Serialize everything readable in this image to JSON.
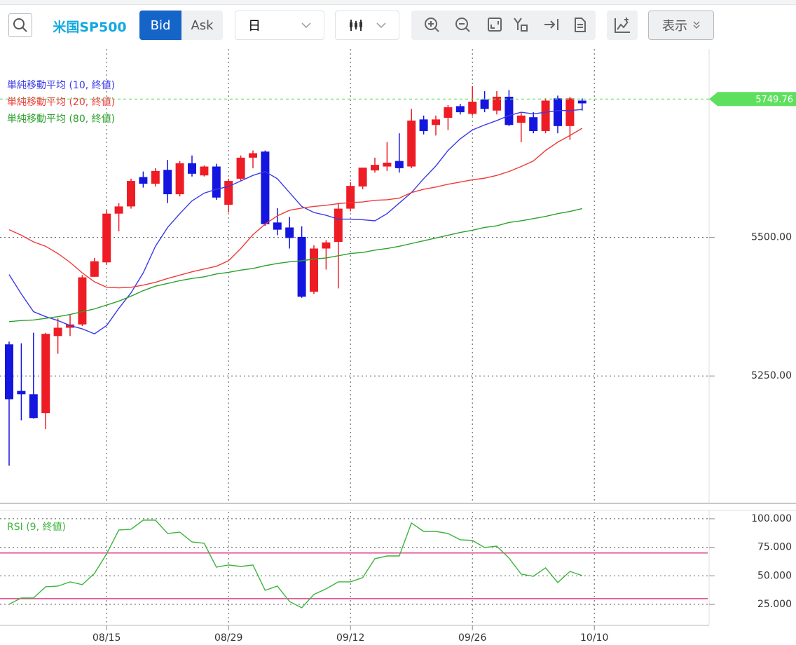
{
  "toolbar": {
    "symbol": "米国SP500",
    "bid": "Bid",
    "ask": "Ask",
    "period": "日",
    "display": "表示"
  },
  "chart_data": [
    {
      "type": "candlestick",
      "up_color": "#ee1c25",
      "down_color": "#1515e0",
      "open": [
        5307,
        5223,
        5217,
        5183,
        5322,
        5337,
        5343,
        5429,
        5455,
        5543,
        5556,
        5609,
        5597,
        5622,
        5578,
        5634,
        5612,
        5628,
        5559,
        5606,
        5644,
        5655,
        5527,
        5518,
        5501,
        5402,
        5480,
        5492,
        5552,
        5592,
        5621,
        5628,
        5638,
        5628,
        5713,
        5703,
        5716,
        5737,
        5723,
        5749,
        5729,
        5754,
        5707,
        5717,
        5692,
        5751,
        5701,
        5747,
        null
      ],
      "high": [
        5312,
        5309,
        5328,
        5328,
        5354,
        5360,
        5432,
        5463,
        5549,
        5562,
        5606,
        5619,
        5625,
        5640,
        5638,
        5648,
        5630,
        5633,
        5606,
        5648,
        5657,
        5657,
        5553,
        5537,
        5520,
        5486,
        5495,
        5562,
        5600,
        5626,
        5644,
        5672,
        5688,
        5732,
        5720,
        5720,
        5739,
        5741,
        5773,
        5764,
        5764,
        5766,
        5726,
        5726,
        5751,
        5756,
        5754,
        5751,
        null
      ],
      "low": [
        5088,
        5170,
        5173,
        5154,
        5290,
        5322,
        5340,
        5429,
        5451,
        5511,
        5552,
        5590,
        5592,
        5562,
        5574,
        5610,
        5610,
        5568,
        5545,
        5602,
        5625,
        5521,
        5504,
        5480,
        5391,
        5398,
        5442,
        5408,
        5547,
        5587,
        5617,
        5620,
        5617,
        5625,
        5686,
        5684,
        5694,
        5722,
        5720,
        5726,
        5722,
        5701,
        5672,
        5688,
        5688,
        5688,
        5676,
        5729,
        null
      ],
      "close": [
        5208,
        5217,
        5174,
        5326,
        5337,
        5343,
        5428,
        5457,
        5543,
        5556,
        5602,
        5597,
        5620,
        5578,
        5634,
        5615,
        5628,
        5572,
        5602,
        5644,
        5652,
        5524,
        5514,
        5499,
        5393,
        5480,
        5491,
        5552,
        5593,
        5626,
        5631,
        5635,
        5625,
        5711,
        5692,
        5713,
        5735,
        5726,
        5745,
        5732,
        5754,
        5703,
        5720,
        5692,
        5747,
        5701,
        5751,
        5742,
        null
      ],
      "series": [
        {
          "name": "単純移動平均 (10, 終値)",
          "color": "#3a3ae8",
          "values": [
            5433,
            5398,
            5366,
            5357,
            5350,
            5341,
            5335,
            5326,
            5341,
            5372,
            5400,
            5436,
            5484,
            5518,
            5543,
            5566,
            5580,
            5587,
            5592,
            5602,
            5612,
            5619,
            5606,
            5581,
            5556,
            5545,
            5540,
            5533,
            5533,
            5532,
            5530,
            5543,
            5562,
            5581,
            5606,
            5629,
            5657,
            5678,
            5694,
            5703,
            5711,
            5720,
            5726,
            5723,
            5726,
            5729,
            5729,
            5731,
            null
          ]
        },
        {
          "name": "単純移動平均 (20, 終値)",
          "color": "#ee3a3a",
          "values": [
            5514,
            5504,
            5492,
            5484,
            5471,
            5455,
            5436,
            5420,
            5410,
            5409,
            5410,
            5414,
            5419,
            5426,
            5432,
            5438,
            5443,
            5448,
            5458,
            5480,
            5505,
            5524,
            5539,
            5549,
            5553,
            5556,
            5558,
            5561,
            5563,
            5564,
            5567,
            5568,
            5571,
            5581,
            5587,
            5591,
            5596,
            5600,
            5604,
            5607,
            5612,
            5619,
            5628,
            5638,
            5657,
            5672,
            5684,
            5697,
            null
          ]
        },
        {
          "name": "単純移動平均 (80, 終値)",
          "color": "#2ca02c",
          "values": [
            5348,
            5350,
            5351,
            5354,
            5357,
            5361,
            5366,
            5371,
            5378,
            5385,
            5394,
            5404,
            5412,
            5417,
            5422,
            5426,
            5429,
            5434,
            5437,
            5441,
            5444,
            5449,
            5453,
            5456,
            5458,
            5461,
            5463,
            5467,
            5471,
            5473,
            5477,
            5480,
            5484,
            5489,
            5494,
            5499,
            5504,
            5509,
            5513,
            5518,
            5521,
            5527,
            5530,
            5534,
            5538,
            5543,
            5547,
            5552,
            null
          ]
        }
      ],
      "last_price": 5749.76,
      "last_price_color": "#5ee05e",
      "ylim": [
        5020,
        5840
      ],
      "yticks": [
        {
          "value": 5250,
          "label": "5250.00"
        },
        {
          "value": 5500,
          "label": "5500.00"
        }
      ],
      "grid": true
    },
    {
      "type": "line",
      "categories": [
        null,
        null,
        null,
        null,
        null,
        null,
        null,
        null,
        "08/15",
        null,
        null,
        null,
        null,
        null,
        null,
        null,
        null,
        null,
        "08/29",
        null,
        null,
        null,
        null,
        null,
        null,
        null,
        null,
        null,
        "09/12",
        null,
        null,
        null,
        null,
        null,
        null,
        null,
        null,
        null,
        "09/26",
        null,
        null,
        null,
        null,
        null,
        null,
        null,
        null,
        null,
        "10/10"
      ],
      "series": [
        {
          "name": "RSI (9, 終値)",
          "color": "#3cb43c",
          "values": [
            25.1,
            30.6,
            30.6,
            40.4,
            41.0,
            44.7,
            42.3,
            52.1,
            69.3,
            90.2,
            90.8,
            98.8,
            98.8,
            87.1,
            88.3,
            79.7,
            78.5,
            57.6,
            59.5,
            58.2,
            59.5,
            37.3,
            41.0,
            27.5,
            22.0,
            33.7,
            38.6,
            44.7,
            44.7,
            48.4,
            65.0,
            67.4,
            67.4,
            96.3,
            88.9,
            88.9,
            87.1,
            81.6,
            81.0,
            74.8,
            76.0,
            65.6,
            51.5,
            49.6,
            57.0,
            44.1,
            53.9,
            50.2,
            null
          ]
        }
      ],
      "levels": [
        70,
        30
      ],
      "level_color": "#e0408a",
      "ylim": [
        6.6,
        106.1
      ],
      "yticks": [
        {
          "value": 25,
          "label": "25.000"
        },
        {
          "value": 50,
          "label": "50.000"
        },
        {
          "value": 75,
          "label": "75.000"
        },
        {
          "value": 100,
          "label": "100.000"
        }
      ],
      "grid": true
    }
  ]
}
